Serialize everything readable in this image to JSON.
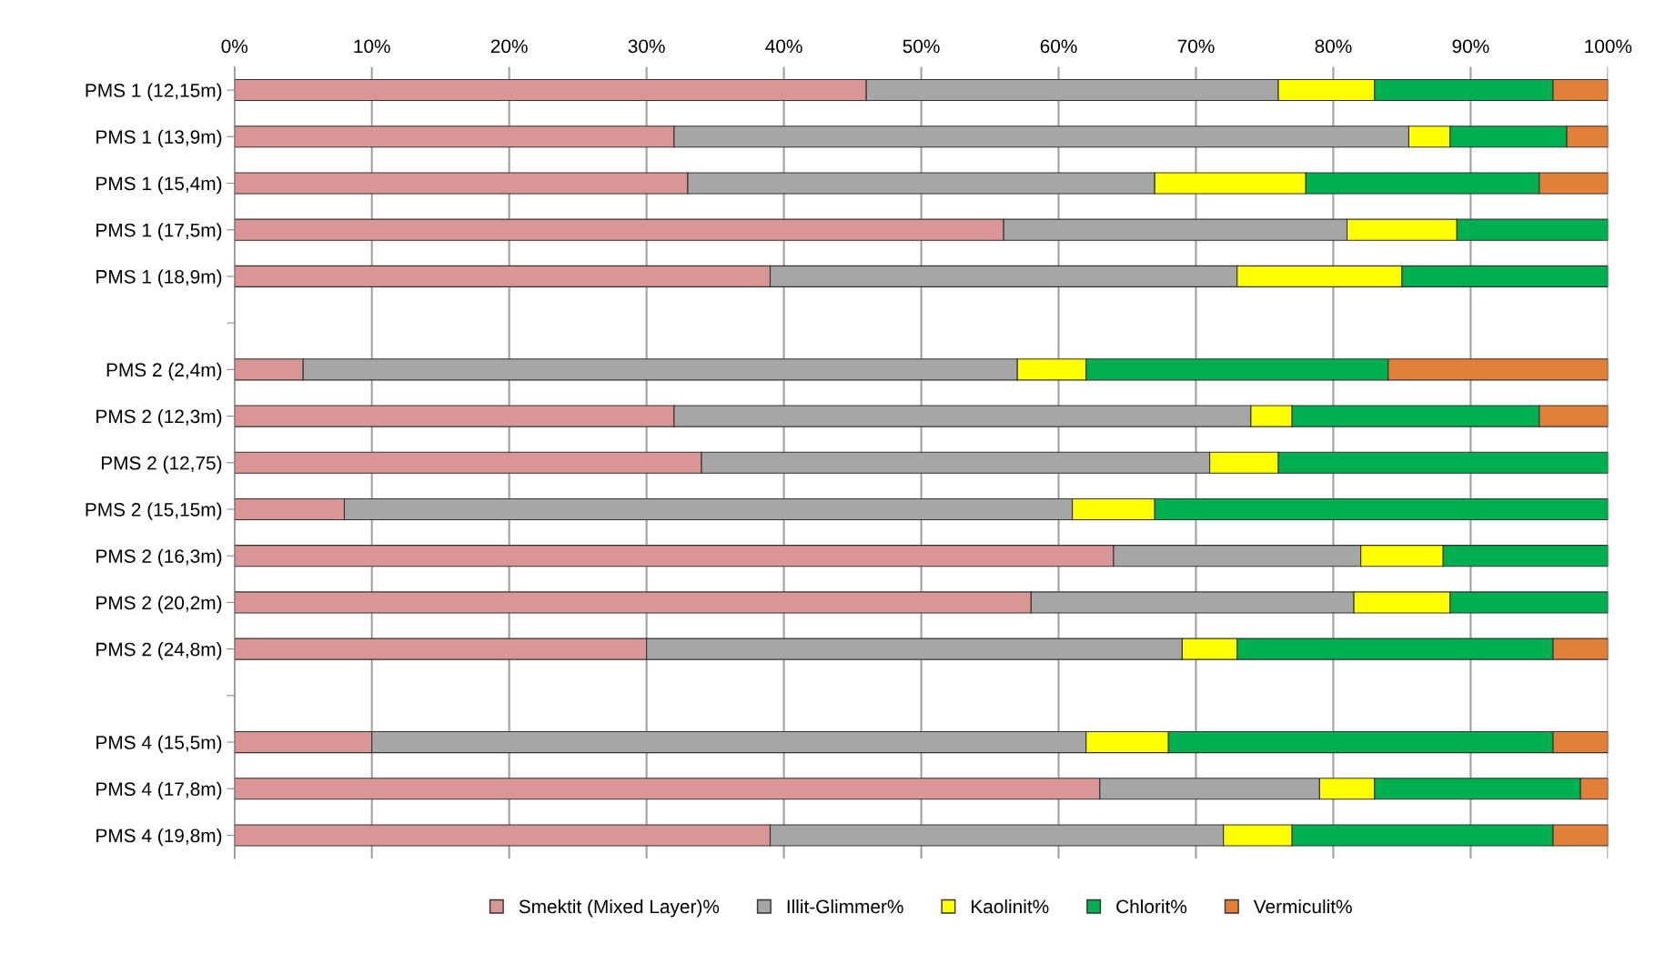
{
  "chart_data": {
    "type": "bar",
    "orientation": "horizontal",
    "stacked": true,
    "categories": [
      "PMS 1 (12,15m)",
      "PMS 1 (13,9m)",
      "PMS 1 (15,4m)",
      "PMS 1 (17,5m)",
      "PMS 1 (18,9m)",
      null,
      "PMS 2 (2,4m)",
      "PMS 2 (12,3m)",
      "PMS 2 (12,75)",
      "PMS 2 (15,15m)",
      "PMS 2 (16,3m)",
      "PMS 2 (20,2m)",
      "PMS 2 (24,8m)",
      null,
      "PMS 4 (15,5m)",
      "PMS 4 (17,8m)",
      "PMS 4 (19,8m)"
    ],
    "series": [
      {
        "name": "Smektit (Mixed Layer)%",
        "color": "#d99694",
        "values": [
          46,
          32,
          33,
          56,
          39,
          null,
          5,
          32,
          34,
          8,
          64,
          58,
          30,
          null,
          10,
          63,
          39
        ]
      },
      {
        "name": "Illit-Glimmer%",
        "color": "#a6a6a6",
        "values": [
          30,
          53.5,
          34,
          25,
          34,
          null,
          52,
          42,
          37,
          53,
          18,
          23.5,
          39,
          null,
          52,
          16,
          33
        ]
      },
      {
        "name": "Kaolinit%",
        "color": "#ffff00",
        "values": [
          7,
          3,
          11,
          8,
          12,
          null,
          5,
          3,
          5,
          6,
          6,
          7,
          4,
          null,
          6,
          4,
          5
        ]
      },
      {
        "name": "Chlorit%",
        "color": "#00b050",
        "values": [
          13,
          8.5,
          17,
          11,
          15,
          null,
          22,
          18,
          24,
          33,
          12,
          11.5,
          23,
          null,
          28,
          15,
          19
        ]
      },
      {
        "name": "Vermiculit%",
        "color": "#e2803a",
        "values": [
          4,
          3,
          5,
          0,
          0,
          null,
          16,
          5,
          0,
          0,
          0,
          0,
          4,
          null,
          4,
          2,
          4
        ]
      }
    ],
    "xlim": [
      0,
      100
    ],
    "xticks": [
      {
        "value": 0,
        "label": "0%"
      },
      {
        "value": 10,
        "label": "10%"
      },
      {
        "value": 20,
        "label": "20%"
      },
      {
        "value": 30,
        "label": "30%"
      },
      {
        "value": 40,
        "label": "40%"
      },
      {
        "value": 50,
        "label": "50%"
      },
      {
        "value": 60,
        "label": "60%"
      },
      {
        "value": 70,
        "label": "70%"
      },
      {
        "value": 80,
        "label": "80%"
      },
      {
        "value": 90,
        "label": "90%"
      },
      {
        "value": 100,
        "label": "100%"
      }
    ],
    "grid": "x",
    "legend": "bottom"
  }
}
